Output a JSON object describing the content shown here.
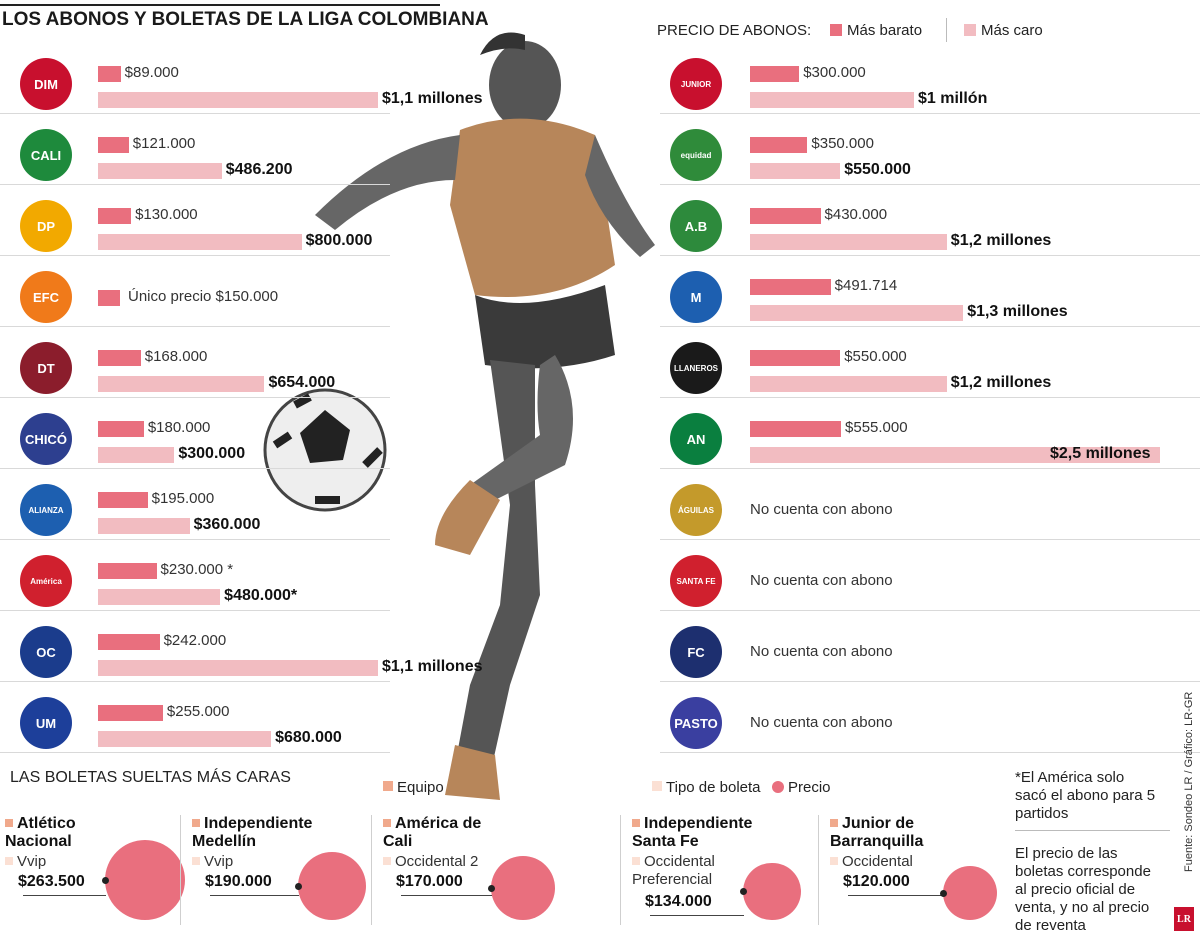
{
  "title": "LOS ABONOS Y BOLETAS DE LA LIGA COLOMBIANA",
  "legend": {
    "title": "PRECIO DE ABONOS:",
    "cheap_label": "Más barato",
    "exp_label": "Más caro",
    "cheap_color": "#e96f7e",
    "exp_color": "#f2bcc1"
  },
  "chart_data": {
    "type": "bar",
    "title": "PRECIO DE ABONOS:",
    "series": [
      {
        "name": "Más barato",
        "color": "#e96f7e"
      },
      {
        "name": "Más caro",
        "color": "#f2bcc1"
      }
    ],
    "rows": [
      {
        "team_icon": "medellin-crest-icon",
        "logo_text": "DIM",
        "logo_color": "#c8102e",
        "cheap": 89000,
        "cheap_label": "$89.000",
        "exp": 1100000,
        "exp_label": "$1,1 millones"
      },
      {
        "team_icon": "cali-crest-icon",
        "logo_text": "CALI",
        "logo_color": "#1e8a3c",
        "cheap": 121000,
        "cheap_label": "$121.000",
        "exp": 486200,
        "exp_label": "$486.200"
      },
      {
        "team_icon": "pereira-crest-icon",
        "logo_text": "DP",
        "logo_color": "#f2a900",
        "cheap": 130000,
        "cheap_label": "$130.000",
        "exp": 800000,
        "exp_label": "$800.000"
      },
      {
        "team_icon": "envigado-crest-icon",
        "logo_text": "EFC",
        "logo_color": "#f07a1a",
        "single": 150000,
        "note": "Único precio $150.000"
      },
      {
        "team_icon": "tolima-crest-icon",
        "logo_text": "DT",
        "logo_color": "#8b1d2c",
        "cheap": 168000,
        "cheap_label": "$168.000",
        "exp": 654000,
        "exp_label": "$654.000"
      },
      {
        "team_icon": "chico-crest-icon",
        "logo_text": "CHICÓ",
        "logo_color": "#2d3f8f",
        "cheap": 180000,
        "cheap_label": "$180.000",
        "exp": 300000,
        "exp_label": "$300.000"
      },
      {
        "team_icon": "alianza-crest-icon",
        "logo_text": "ALIANZA",
        "logo_color": "#1d5fb0",
        "cheap": 195000,
        "cheap_label": "$195.000",
        "exp": 360000,
        "exp_label": "$360.000"
      },
      {
        "team_icon": "america-crest-icon",
        "logo_text": "América",
        "logo_color": "#d0202e",
        "cheap": 230000,
        "cheap_label": "$230.000 *",
        "exp": 480000,
        "exp_label": "$480.000*"
      },
      {
        "team_icon": "once-caldas-crest-icon",
        "logo_text": "OC",
        "logo_color": "#1b3c8c",
        "cheap": 242000,
        "cheap_label": "$242.000",
        "exp": 1100000,
        "exp_label": "$1,1 millones"
      },
      {
        "team_icon": "union-magdalena-crest-icon",
        "logo_text": "UM",
        "logo_color": "#1d3f9a",
        "cheap": 255000,
        "cheap_label": "$255.000",
        "exp": 680000,
        "exp_label": "$680.000"
      },
      {
        "team_icon": "junior-crest-icon",
        "logo_text": "JUNIOR",
        "logo_color": "#c8102e",
        "cheap": 300000,
        "cheap_label": "$300.000",
        "exp": 1000000,
        "exp_label": "$1 millón"
      },
      {
        "team_icon": "equidad-crest-icon",
        "logo_text": "equidad",
        "logo_color": "#2f8b3a",
        "cheap": 350000,
        "cheap_label": "$350.000",
        "exp": 550000,
        "exp_label": "$550.000"
      },
      {
        "team_icon": "bucaramanga-crest-icon",
        "logo_text": "A.B",
        "logo_color": "#2d8a3c",
        "cheap": 430000,
        "cheap_label": "$430.000",
        "exp": 1200000,
        "exp_label": "$1,2 millones"
      },
      {
        "team_icon": "millonarios-crest-icon",
        "logo_text": "M",
        "logo_color": "#1d5fb0",
        "cheap": 491714,
        "cheap_label": "$491.714",
        "exp": 1300000,
        "exp_label": "$1,3 millones"
      },
      {
        "team_icon": "llaneros-crest-icon",
        "logo_text": "LLANEROS",
        "logo_color": "#1a1a1a",
        "cheap": 550000,
        "cheap_label": "$550.000",
        "exp": 1200000,
        "exp_label": "$1,2 millones"
      },
      {
        "team_icon": "nacional-crest-icon",
        "logo_text": "AN",
        "logo_color": "#0a7f3f",
        "cheap": 555000,
        "cheap_label": "$555.000",
        "exp": 2500000,
        "exp_label": "$2,5 millones"
      },
      {
        "team_icon": "aguilas-crest-icon",
        "logo_text": "ÁGUILAS",
        "logo_color": "#c49a2b",
        "note": "No cuenta con abono"
      },
      {
        "team_icon": "santa-fe-crest-icon",
        "logo_text": "SANTA FE",
        "logo_color": "#d0202e",
        "note": "No cuenta con abono"
      },
      {
        "team_icon": "fortaleza-crest-icon",
        "logo_text": "FC",
        "logo_color": "#1d2f6f",
        "note": "No cuenta con abono"
      },
      {
        "team_icon": "pasto-crest-icon",
        "logo_text": "PASTO",
        "logo_color": "#3a3fa0",
        "note": "No cuenta con abono"
      }
    ]
  },
  "boletas": {
    "title": "LAS BOLETAS SUELTAS MÁS CARAS",
    "legend_team": "Equipo",
    "legend_type": "Tipo de boleta",
    "legend_price": "Precio",
    "team_color": "#f0a98c",
    "type_color": "#fbe0d4",
    "price_color": "#e96f7e",
    "items": [
      {
        "team": "Atlético Nacional",
        "type": "Vvip",
        "price_label": "$263.500",
        "value": 263500
      },
      {
        "team": "Independiente Medellín",
        "type": "Vvip",
        "price_label": "$190.000",
        "value": 190000
      },
      {
        "team": "América de Cali",
        "type": "Occidental 2",
        "price_label": "$170.000",
        "value": 170000
      },
      {
        "team": "Independiente Santa Fe",
        "type": "Occidental Preferencial",
        "price_label": "$134.000",
        "value": 134000
      },
      {
        "team": "Junior de Barranquilla",
        "type": "Occidental",
        "price_label": "$120.000",
        "value": 120000
      }
    ]
  },
  "notes": {
    "america": "*El América solo sacó el abono para 5 partidos",
    "precio": "El precio de las boletas corresponde al precio oficial de venta, y no al precio de reventa"
  },
  "source": "Fuente: Sondeo LR / Gráfico: LR-GR",
  "brand": "LR"
}
